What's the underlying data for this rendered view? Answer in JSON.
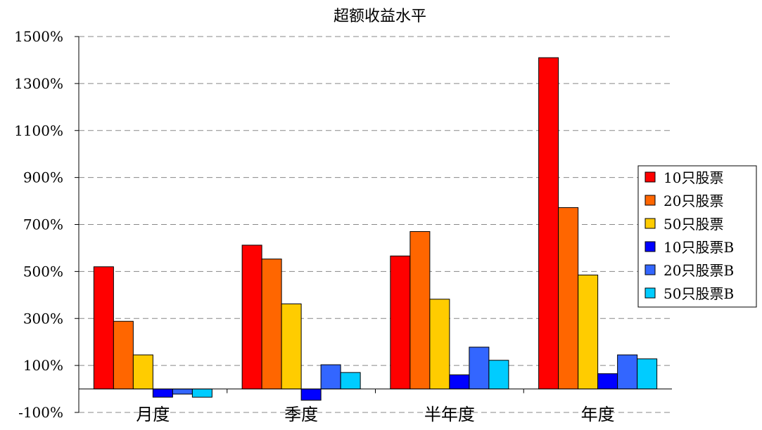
{
  "chart_data": {
    "type": "bar",
    "title": "超额收益水平",
    "xlabel": "",
    "ylabel": "",
    "categories": [
      "月度",
      "季度",
      "半年度",
      "年度"
    ],
    "series": [
      {
        "name": "10只股票",
        "color": "#ff0000",
        "values": [
          520,
          612,
          566,
          1410
        ]
      },
      {
        "name": "20只股票",
        "color": "#ff6600",
        "values": [
          288,
          553,
          670,
          772
        ]
      },
      {
        "name": "50只股票",
        "color": "#ffcc00",
        "values": [
          145,
          362,
          382,
          485
        ]
      },
      {
        "name": "10只股票B",
        "color": "#0000ff",
        "values": [
          -35,
          -48,
          60,
          65
        ]
      },
      {
        "name": "20只股票B",
        "color": "#3366ff",
        "values": [
          -22,
          103,
          178,
          145
        ]
      },
      {
        "name": "50只股票B",
        "color": "#00ccff",
        "values": [
          -35,
          70,
          122,
          128
        ]
      }
    ],
    "ylim": [
      -100,
      1500
    ],
    "yticks": [
      "-100%",
      "100%",
      "300%",
      "500%",
      "700%",
      "900%",
      "1100%",
      "1300%",
      "1500%"
    ],
    "ytick_values": [
      -100,
      100,
      300,
      500,
      700,
      900,
      1100,
      1300,
      1500
    ],
    "grid": true,
    "grid_style": "dashed",
    "legend_position": "right"
  }
}
